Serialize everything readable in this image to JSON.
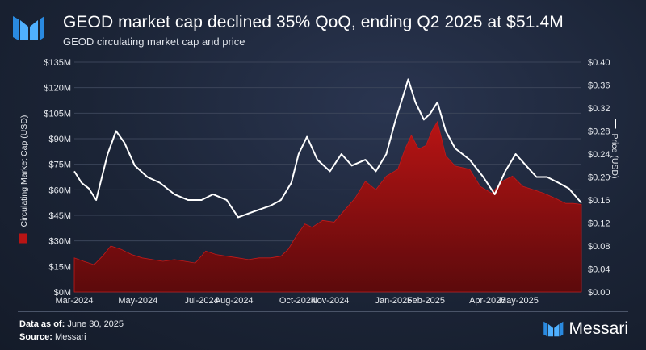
{
  "header": {
    "title": "GEOD market cap declined 35% QoQ, ending Q2 2025 at $51.4M",
    "subtitle": "GEOD circulating market cap and price"
  },
  "footer": {
    "data_as_of_label": "Data as of:",
    "data_as_of_value": "June 30, 2025",
    "source_label": "Source:",
    "source_value": "Messari",
    "brand": "Messari"
  },
  "colors": {
    "accent_blue": "#2a8ae0",
    "market_cap_fill_top": "#b81414",
    "market_cap_fill_bottom": "#5c0a0c",
    "price_line": "#ffffff",
    "grid": "#3b4459"
  },
  "chart_data": {
    "type": "area",
    "xlabel": "",
    "ylabel": "Circulating Market Cap (USD)",
    "y2label": "Price (USD)",
    "x_range": [
      "2024-03-01",
      "2025-06-30"
    ],
    "x_ticks": [
      {
        "date": "2024-03-01",
        "label": "Mar-2024"
      },
      {
        "date": "2024-05-01",
        "label": "May-2024"
      },
      {
        "date": "2024-07-01",
        "label": "Jul-2024"
      },
      {
        "date": "2024-08-01",
        "label": "Aug-2024"
      },
      {
        "date": "2024-10-01",
        "label": "Oct-2024"
      },
      {
        "date": "2024-11-01",
        "label": "Nov-2024"
      },
      {
        "date": "2025-01-01",
        "label": "Jan-2025"
      },
      {
        "date": "2025-02-01",
        "label": "Feb-2025"
      },
      {
        "date": "2025-04-01",
        "label": "Apr-2025"
      },
      {
        "date": "2025-05-01",
        "label": "May-2025"
      }
    ],
    "ylim": [
      0,
      135
    ],
    "y_ticks": [
      {
        "value": 0,
        "label": "$0M"
      },
      {
        "value": 15,
        "label": "$15M"
      },
      {
        "value": 30,
        "label": "$30M"
      },
      {
        "value": 45,
        "label": "$45M"
      },
      {
        "value": 60,
        "label": "$60M"
      },
      {
        "value": 75,
        "label": "$75M"
      },
      {
        "value": 90,
        "label": "$90M"
      },
      {
        "value": 105,
        "label": "$105M"
      },
      {
        "value": 120,
        "label": "$120M"
      },
      {
        "value": 135,
        "label": "$135M"
      }
    ],
    "y2lim": [
      0,
      0.4
    ],
    "y2_ticks": [
      {
        "value": 0,
        "label": "$0.00"
      },
      {
        "value": 0.04,
        "label": "$0.04"
      },
      {
        "value": 0.08,
        "label": "$0.08"
      },
      {
        "value": 0.12,
        "label": "$0.12"
      },
      {
        "value": 0.16,
        "label": "$0.16"
      },
      {
        "value": 0.2,
        "label": "$0.20"
      },
      {
        "value": 0.24,
        "label": "$0.24"
      },
      {
        "value": 0.28,
        "label": "$0.28"
      },
      {
        "value": 0.32,
        "label": "$0.32"
      },
      {
        "value": 0.36,
        "label": "$0.36"
      },
      {
        "value": 0.4,
        "label": "$0.40"
      }
    ],
    "grid": true,
    "series": [
      {
        "axis": "left",
        "type": "area",
        "points": [
          [
            "2024-03-01",
            20
          ],
          [
            "2024-03-10",
            18
          ],
          [
            "2024-03-20",
            16
          ],
          [
            "2024-03-28",
            21
          ],
          [
            "2024-04-05",
            27
          ],
          [
            "2024-04-15",
            25
          ],
          [
            "2024-04-25",
            22
          ],
          [
            "2024-05-05",
            20
          ],
          [
            "2024-05-15",
            19
          ],
          [
            "2024-05-25",
            18
          ],
          [
            "2024-06-05",
            19
          ],
          [
            "2024-06-15",
            18
          ],
          [
            "2024-06-25",
            17
          ],
          [
            "2024-07-05",
            24
          ],
          [
            "2024-07-15",
            22
          ],
          [
            "2024-07-25",
            21
          ],
          [
            "2024-08-05",
            20
          ],
          [
            "2024-08-15",
            19
          ],
          [
            "2024-08-25",
            20
          ],
          [
            "2024-09-05",
            20
          ],
          [
            "2024-09-15",
            21
          ],
          [
            "2024-09-22",
            25
          ],
          [
            "2024-09-30",
            33
          ],
          [
            "2024-10-08",
            40
          ],
          [
            "2024-10-15",
            38
          ],
          [
            "2024-10-25",
            42
          ],
          [
            "2024-11-05",
            41
          ],
          [
            "2024-11-15",
            48
          ],
          [
            "2024-11-25",
            55
          ],
          [
            "2024-12-05",
            65
          ],
          [
            "2024-12-15",
            60
          ],
          [
            "2024-12-25",
            68
          ],
          [
            "2025-01-05",
            72
          ],
          [
            "2025-01-12",
            84
          ],
          [
            "2025-01-18",
            92
          ],
          [
            "2025-01-25",
            84
          ],
          [
            "2025-02-01",
            86
          ],
          [
            "2025-02-07",
            95
          ],
          [
            "2025-02-12",
            100
          ],
          [
            "2025-02-20",
            80
          ],
          [
            "2025-03-01",
            74
          ],
          [
            "2025-03-15",
            72
          ],
          [
            "2025-03-25",
            62
          ],
          [
            "2025-04-05",
            58
          ],
          [
            "2025-04-15",
            65
          ],
          [
            "2025-04-25",
            68
          ],
          [
            "2025-05-05",
            62
          ],
          [
            "2025-05-15",
            60
          ],
          [
            "2025-05-25",
            58
          ],
          [
            "2025-06-05",
            55
          ],
          [
            "2025-06-15",
            52
          ],
          [
            "2025-06-22",
            52
          ],
          [
            "2025-06-30",
            51.4
          ]
        ]
      },
      {
        "axis": "right",
        "type": "line",
        "points": [
          [
            "2024-03-01",
            0.21
          ],
          [
            "2024-03-08",
            0.19
          ],
          [
            "2024-03-15",
            0.18
          ],
          [
            "2024-03-22",
            0.16
          ],
          [
            "2024-04-02",
            0.24
          ],
          [
            "2024-04-10",
            0.28
          ],
          [
            "2024-04-18",
            0.26
          ],
          [
            "2024-04-28",
            0.22
          ],
          [
            "2024-05-10",
            0.2
          ],
          [
            "2024-05-22",
            0.19
          ],
          [
            "2024-06-05",
            0.17
          ],
          [
            "2024-06-18",
            0.16
          ],
          [
            "2024-07-01",
            0.16
          ],
          [
            "2024-07-12",
            0.17
          ],
          [
            "2024-07-25",
            0.16
          ],
          [
            "2024-08-05",
            0.13
          ],
          [
            "2024-08-20",
            0.14
          ],
          [
            "2024-09-05",
            0.15
          ],
          [
            "2024-09-15",
            0.16
          ],
          [
            "2024-09-25",
            0.19
          ],
          [
            "2024-10-02",
            0.24
          ],
          [
            "2024-10-10",
            0.27
          ],
          [
            "2024-10-20",
            0.23
          ],
          [
            "2024-11-01",
            0.21
          ],
          [
            "2024-11-12",
            0.24
          ],
          [
            "2024-11-22",
            0.22
          ],
          [
            "2024-12-05",
            0.23
          ],
          [
            "2024-12-15",
            0.21
          ],
          [
            "2024-12-25",
            0.24
          ],
          [
            "2025-01-03",
            0.3
          ],
          [
            "2025-01-10",
            0.34
          ],
          [
            "2025-01-15",
            0.37
          ],
          [
            "2025-01-22",
            0.33
          ],
          [
            "2025-01-30",
            0.3
          ],
          [
            "2025-02-05",
            0.31
          ],
          [
            "2025-02-12",
            0.33
          ],
          [
            "2025-02-20",
            0.28
          ],
          [
            "2025-03-01",
            0.25
          ],
          [
            "2025-03-15",
            0.23
          ],
          [
            "2025-03-28",
            0.2
          ],
          [
            "2025-04-08",
            0.17
          ],
          [
            "2025-04-18",
            0.21
          ],
          [
            "2025-04-28",
            0.24
          ],
          [
            "2025-05-08",
            0.22
          ],
          [
            "2025-05-18",
            0.2
          ],
          [
            "2025-05-28",
            0.2
          ],
          [
            "2025-06-08",
            0.19
          ],
          [
            "2025-06-18",
            0.18
          ],
          [
            "2025-06-30",
            0.155
          ]
        ]
      }
    ]
  }
}
